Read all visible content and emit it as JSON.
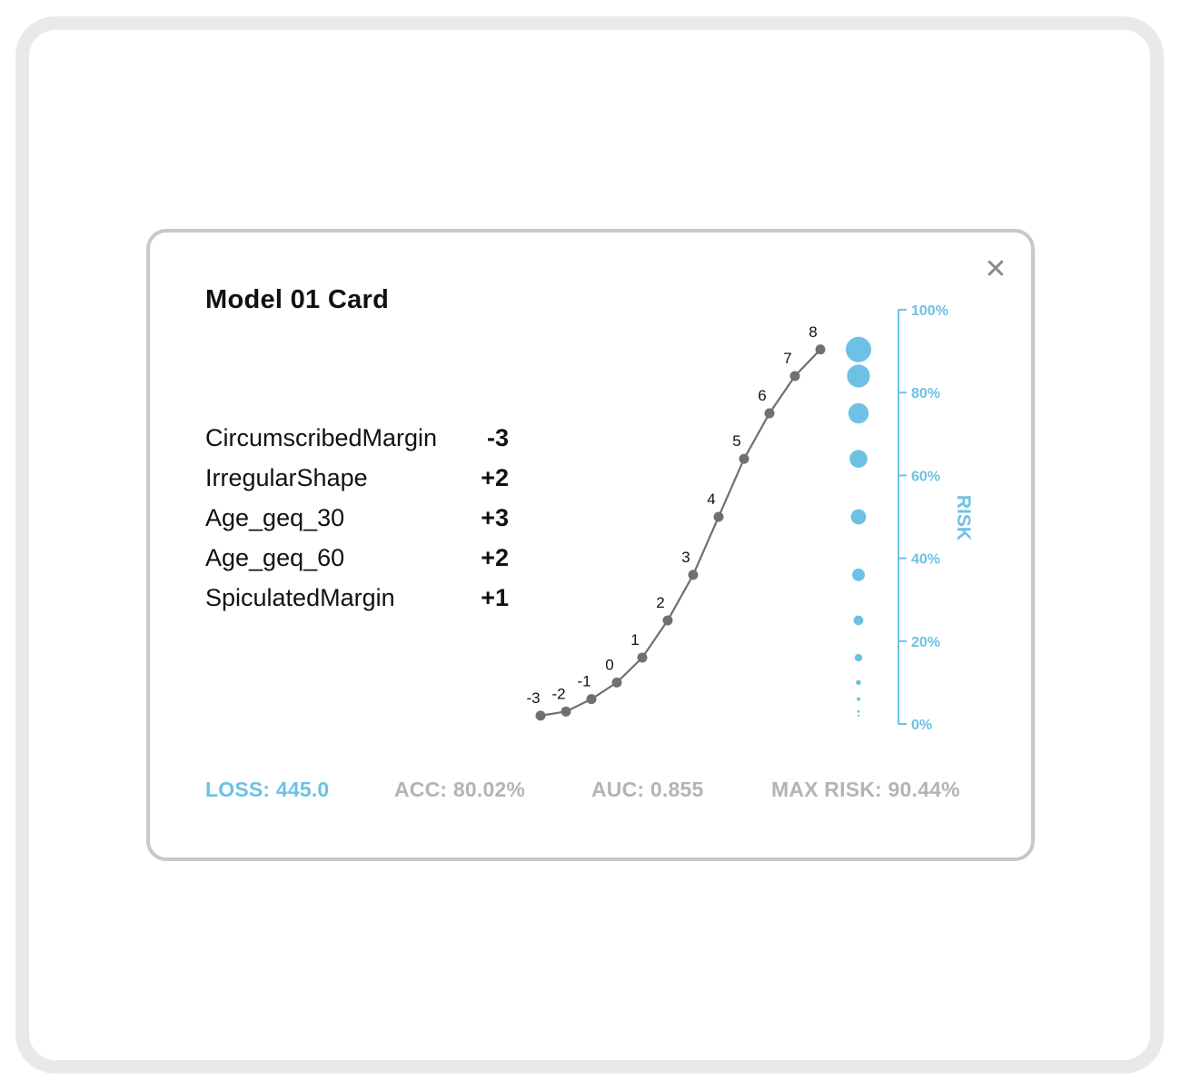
{
  "card": {
    "title": "Model 01 Card",
    "close_icon": "close-icon"
  },
  "features": [
    {
      "name": "CircumscribedMargin",
      "weight": "-3"
    },
    {
      "name": "IrregularShape",
      "weight": "+2"
    },
    {
      "name": "Age_geq_30",
      "weight": "+3"
    },
    {
      "name": "Age_geq_60",
      "weight": "+2"
    },
    {
      "name": "SpiculatedMargin",
      "weight": "+1"
    }
  ],
  "metrics": {
    "loss": "LOSS: 445.0",
    "acc": "ACC: 80.02%",
    "auc": "AUC: 0.855",
    "max_risk": "MAX RISK: 90.44%"
  },
  "colors": {
    "accent": "#6ec1e4",
    "metric_gray": "#b4b4b4",
    "curve": "#707070",
    "card_border": "#c8c8c8",
    "outer_border": "#e9e9e9"
  },
  "chart_data": {
    "type": "line",
    "xlabel": "",
    "ylabel": "RISK",
    "ylim": [
      0,
      100
    ],
    "y_ticks": [
      "0%",
      "20%",
      "40%",
      "60%",
      "80%",
      "100%"
    ],
    "series": [
      {
        "x": [
          -3,
          -2,
          -1,
          0,
          1,
          2,
          3,
          4,
          5,
          6,
          7,
          8
        ],
        "values": [
          2,
          3,
          6,
          10,
          16,
          25,
          36,
          50,
          64,
          75,
          84,
          90.4
        ],
        "point_labels": [
          "-3",
          "-2",
          "-1",
          "0",
          "1",
          "2",
          "3",
          "4",
          "5",
          "6",
          "7",
          "8"
        ]
      }
    ],
    "risk_dots": [
      {
        "risk": 90.4,
        "size": 1.0
      },
      {
        "risk": 84,
        "size": 0.9
      },
      {
        "risk": 75,
        "size": 0.8
      },
      {
        "risk": 64,
        "size": 0.7
      },
      {
        "risk": 50,
        "size": 0.6
      },
      {
        "risk": 36,
        "size": 0.5
      },
      {
        "risk": 25,
        "size": 0.38
      },
      {
        "risk": 16,
        "size": 0.3
      },
      {
        "risk": 10,
        "size": 0.2
      },
      {
        "risk": 6,
        "size": 0.14
      },
      {
        "risk": 3,
        "size": 0.1
      },
      {
        "risk": 2,
        "size": 0.08
      }
    ]
  }
}
